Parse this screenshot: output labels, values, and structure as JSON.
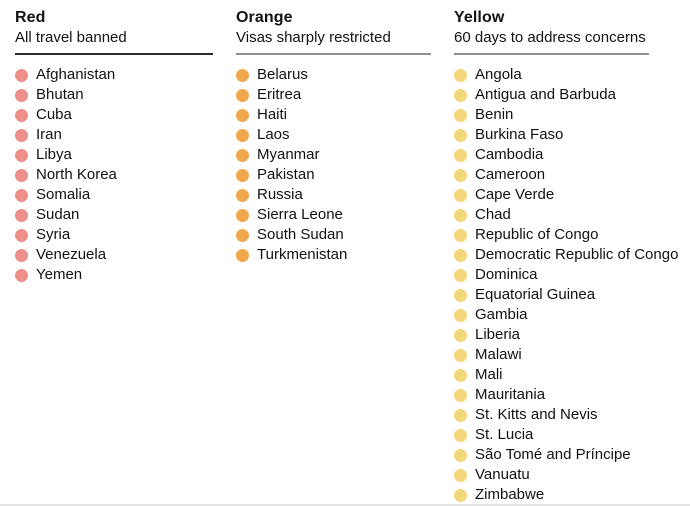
{
  "chart_data": {
    "type": "table",
    "title": "",
    "legend_position": "none",
    "text_color": "#121212",
    "background_color": "#ffffff",
    "columns": [
      {
        "id": "red",
        "title": "Red",
        "subtitle": "All travel banned",
        "dot_color": "#ee8f8c",
        "rule_color": "#2a2a2a",
        "count": 11,
        "countries": [
          "Afghanistan",
          "Bhutan",
          "Cuba",
          "Iran",
          "Libya",
          "North Korea",
          "Somalia",
          "Sudan",
          "Syria",
          "Venezuela",
          "Yemen"
        ]
      },
      {
        "id": "orange",
        "title": "Orange",
        "subtitle": "Visas sharply restricted",
        "dot_color": "#f1a74e",
        "rule_color": "#8f8f8f",
        "count": 10,
        "countries": [
          "Belarus",
          "Eritrea",
          "Haiti",
          "Laos",
          "Myanmar",
          "Pakistan",
          "Russia",
          "Sierra Leone",
          "South Sudan",
          "Turkmenistan"
        ]
      },
      {
        "id": "yellow",
        "title": "Yellow",
        "subtitle": "60 days to address concerns",
        "dot_color": "#f2d87a",
        "rule_color": "#8f8f8f",
        "count": 22,
        "countries": [
          "Angola",
          "Antigua and Barbuda",
          "Benin",
          "Burkina Faso",
          "Cambodia",
          "Cameroon",
          "Cape Verde",
          "Chad",
          "Republic of Congo",
          "Democratic Republic of Congo",
          "Dominica",
          "Equatorial Guinea",
          "Gambia",
          "Liberia",
          "Malawi",
          "Mali",
          "Mauritania",
          "St. Kitts and Nevis",
          "St. Lucia",
          "São Tomé and Príncipe",
          "Vanuatu",
          "Zimbabwe"
        ]
      }
    ]
  }
}
